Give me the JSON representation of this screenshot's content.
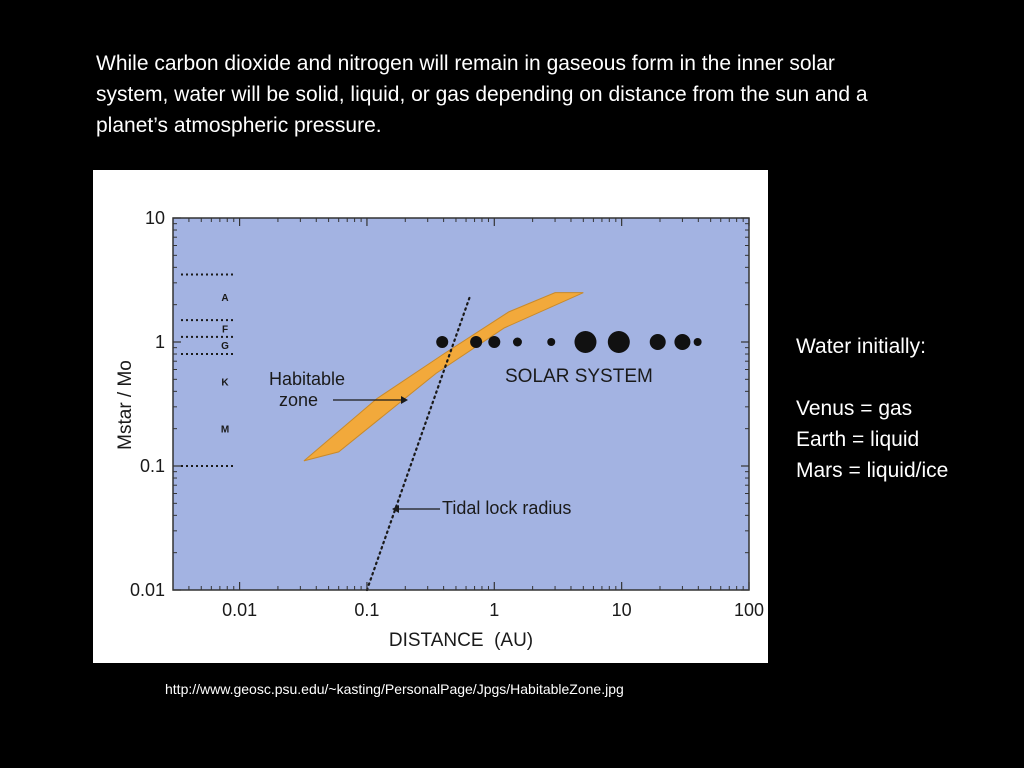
{
  "slide": {
    "intro_text": "While carbon dioxide and nitrogen will remain in gaseous form in the inner solar system, water will be solid, liquid, or gas depending on distance from the sun and a planet’s atmospheric pressure.",
    "sidebar": {
      "heading": "Water initially:",
      "items": [
        "Venus = gas",
        "Earth = liquid",
        "Mars = liquid/ice"
      ]
    },
    "source_url": "http://www.geosc.psu.edu/~kasting/PersonalPage/Jpgs/HabitableZone.jpg"
  },
  "chart_data": {
    "type": "scatter",
    "xlabel": "DISTANCE  (AU)",
    "ylabel": "Mstar / Mo",
    "xscale": "log",
    "yscale": "log",
    "xlim": [
      0.003,
      100
    ],
    "ylim": [
      0.01,
      10
    ],
    "x_ticks": [
      "0.01",
      "0.1",
      "1",
      "10",
      "100"
    ],
    "y_ticks": [
      "10",
      "1",
      "0.1",
      "0.01"
    ],
    "colors": {
      "plot_bg": "#a3b3e2",
      "zone": "#f2a93b",
      "zone_edge": "#c98a2a",
      "planets": "#111111"
    },
    "stellar_classes": [
      "A",
      "F",
      "G",
      "K",
      "M"
    ],
    "spectral_boundaries_msun": [
      3.5,
      1.5,
      1.1,
      0.8,
      0.1
    ],
    "labels": {
      "habitable_zone": [
        "Habitable",
        "zone"
      ],
      "solar_system": "SOLAR SYSTEM",
      "tidal_lock": "Tidal lock radius"
    },
    "habitable_zone_polygon": [
      [
        0.032,
        0.11
      ],
      [
        0.06,
        0.13
      ],
      [
        0.35,
        0.56
      ],
      [
        1.2,
        1.3
      ],
      [
        5,
        2.5
      ],
      [
        3,
        2.5
      ],
      [
        1.3,
        1.75
      ],
      [
        0.4,
        0.8
      ],
      [
        0.12,
        0.35
      ],
      [
        0.032,
        0.11
      ]
    ],
    "tidal_lock_line": [
      [
        0.1,
        0.01
      ],
      [
        0.65,
        2.4
      ]
    ],
    "planets": [
      {
        "x": 0.39,
        "y": 1,
        "size": 6
      },
      {
        "x": 0.72,
        "y": 1,
        "size": 6
      },
      {
        "x": 1.0,
        "y": 1,
        "size": 6
      },
      {
        "x": 1.52,
        "y": 1,
        "size": 4.5
      },
      {
        "x": 2.8,
        "y": 1,
        "size": 4
      },
      {
        "x": 5.2,
        "y": 1,
        "size": 11
      },
      {
        "x": 9.5,
        "y": 1,
        "size": 11
      },
      {
        "x": 19.2,
        "y": 1,
        "size": 8
      },
      {
        "x": 30,
        "y": 1,
        "size": 8
      },
      {
        "x": 39.5,
        "y": 1,
        "size": 4
      }
    ]
  }
}
